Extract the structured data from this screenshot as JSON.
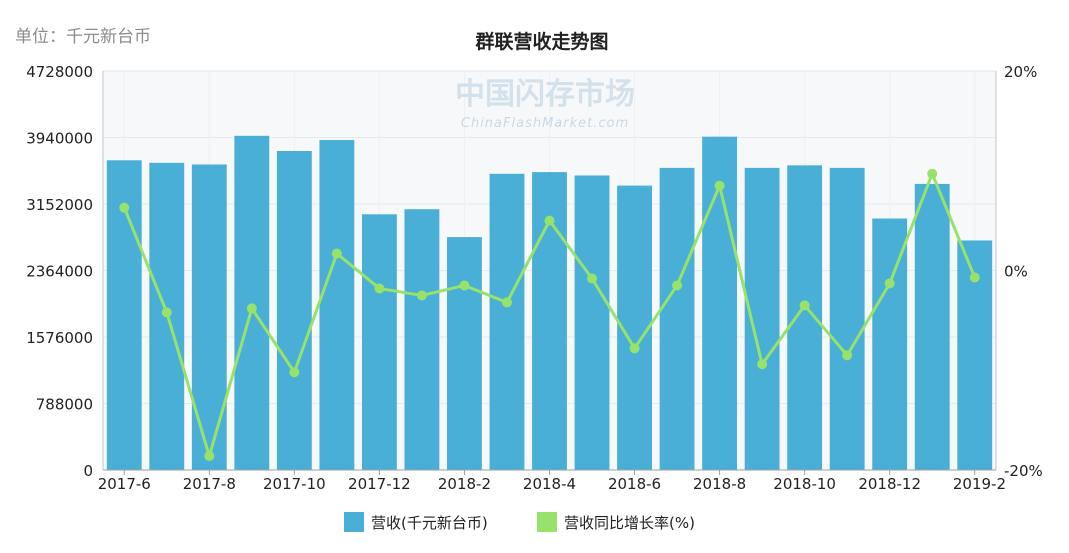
{
  "chart_data": {
    "type": "bar",
    "unit_label": "单位：千元新台币",
    "title": "群联营收走势图",
    "categories": [
      "2017-6",
      "2017-7",
      "2017-8",
      "2017-9",
      "2017-10",
      "2017-11",
      "2017-12",
      "2018-1",
      "2018-2",
      "2018-3",
      "2018-4",
      "2018-5",
      "2018-6",
      "2018-7",
      "2018-8",
      "2018-9",
      "2018-10",
      "2018-11",
      "2018-12",
      "2019-1",
      "2019-2"
    ],
    "x_tick_labels": [
      "2017-6",
      "2017-8",
      "2017-10",
      "2017-12",
      "2018-2",
      "2018-4",
      "2018-6",
      "2018-8",
      "2018-10",
      "2018-12",
      "2019-2"
    ],
    "y_left": {
      "ticks": [
        0,
        788000,
        1576000,
        2364000,
        3152000,
        3940000,
        4728000
      ],
      "tick_labels": [
        "0",
        "788000",
        "1576000",
        "2364000",
        "3152000",
        "3940000",
        "4728000"
      ],
      "range": [
        0,
        4728000
      ]
    },
    "y_right": {
      "ticks": [
        -20,
        0,
        20
      ],
      "tick_labels": [
        "-20%",
        "0%",
        "20%"
      ],
      "range": [
        -20,
        20
      ]
    },
    "grid": true,
    "legend_position": "bottom",
    "series": [
      {
        "name": "营收(千元新台币)",
        "type": "bar",
        "axis": "left",
        "color": "#4aafd6",
        "values": [
          3670000,
          3640000,
          3620000,
          3960000,
          3780000,
          3910000,
          3030000,
          3090000,
          2760000,
          3510000,
          3530000,
          3490000,
          3370000,
          3580000,
          3950000,
          3580000,
          3610000,
          3580000,
          2980000,
          3390000,
          2720000
        ]
      },
      {
        "name": "营收同比增长率(%)",
        "type": "line",
        "axis": "right",
        "color": "#97e26a",
        "values": [
          6.3,
          -4.2,
          -18.6,
          -3.8,
          -10.2,
          1.7,
          -1.8,
          -2.5,
          -1.5,
          -3.2,
          5.0,
          -0.8,
          -7.8,
          -1.5,
          8.5,
          -9.4,
          -3.5,
          -8.5,
          -1.3,
          9.7,
          -0.7
        ]
      }
    ]
  },
  "watermark": {
    "cn": "中国闪存市场",
    "en": "ChinaFlashMarket.com"
  }
}
